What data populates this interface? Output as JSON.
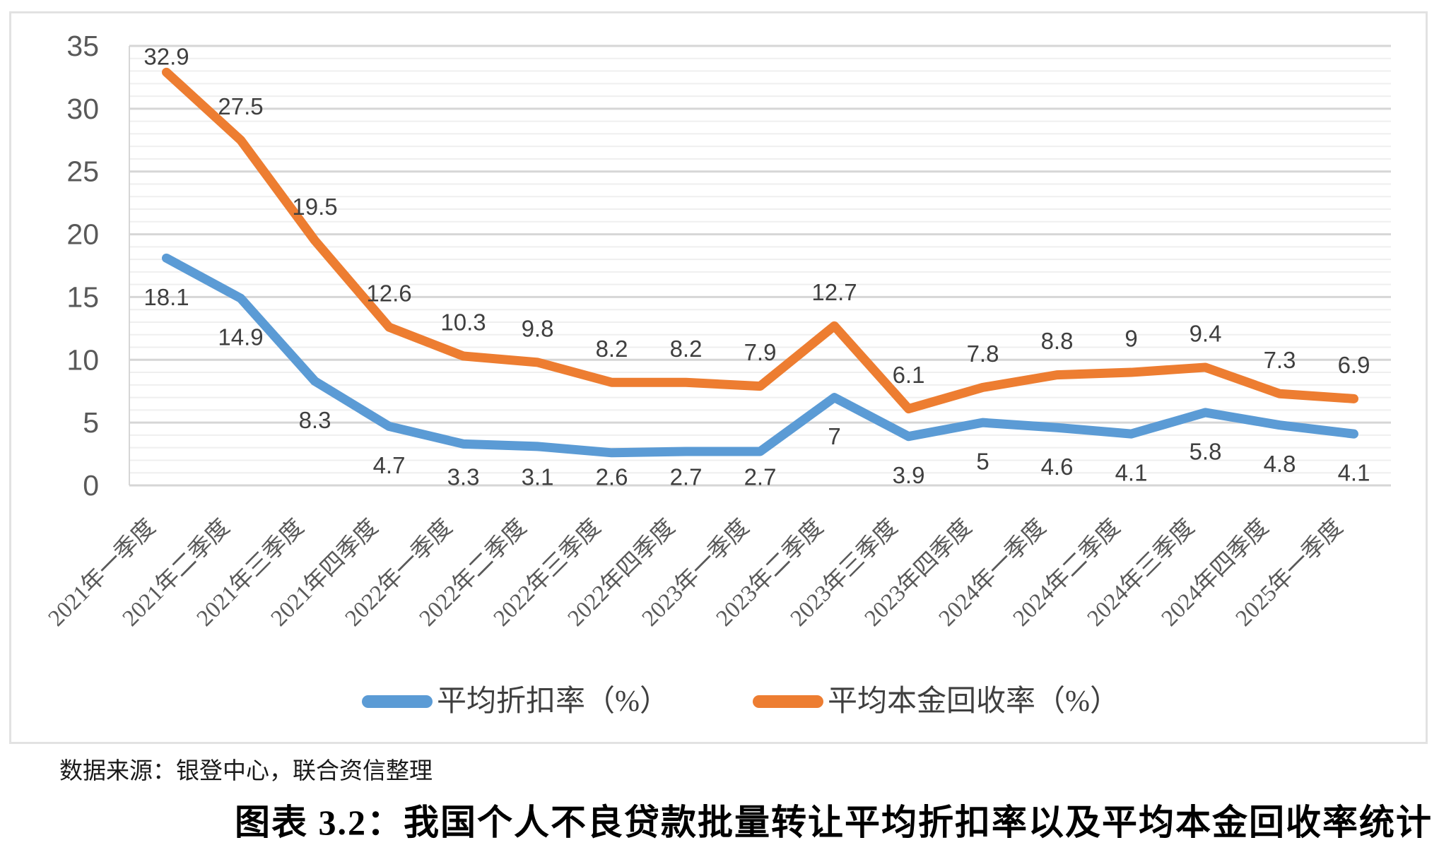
{
  "chart_data": {
    "type": "line",
    "categories": [
      "2021年一季度",
      "2021年二季度",
      "2021年三季度",
      "2021年四季度",
      "2022年一季度",
      "2022年二季度",
      "2022年三季度",
      "2022年四季度",
      "2023年一季度",
      "2023年二季度",
      "2023年三季度",
      "2023年四季度",
      "2024年一季度",
      "2024年二季度",
      "2024年三季度",
      "2024年四季度",
      "2025年一季度"
    ],
    "series": [
      {
        "name": "平均折扣率（%）",
        "color": "#5B9BD5",
        "values": [
          18.1,
          14.9,
          8.3,
          4.7,
          3.3,
          3.1,
          2.6,
          2.7,
          2.7,
          7,
          3.9,
          5,
          4.6,
          4.1,
          5.8,
          4.8,
          4.1
        ],
        "label_side": "below"
      },
      {
        "name": "平均本金回收率（%）",
        "color": "#ED7D31",
        "values": [
          32.9,
          27.5,
          19.5,
          12.6,
          10.3,
          9.8,
          8.2,
          8.2,
          7.9,
          12.7,
          6.1,
          7.8,
          8.8,
          9,
          9.4,
          7.3,
          6.9
        ],
        "label_side": "above"
      }
    ],
    "title": "",
    "xlabel": "",
    "ylabel": "",
    "ylim": [
      0,
      35
    ],
    "y_ticks": [
      0,
      5,
      10,
      15,
      20,
      25,
      30,
      35
    ],
    "minor_grid_step": 1,
    "grid": true,
    "legend_position": "bottom",
    "colors": {
      "major_grid": "#d6d6d6",
      "minor_grid": "#efefef",
      "axis_label": "#595959",
      "data_label": "#3f3f3f"
    }
  },
  "legend": {
    "items": [
      {
        "label": "平均折扣率（%）",
        "color": "#5B9BD5"
      },
      {
        "label": "平均本金回收率（%）",
        "color": "#ED7D31"
      }
    ]
  },
  "source_note": "数据来源：银登中心，联合资信整理",
  "caption": "图表 3.2：我国个人不良贷款批量转让平均折扣率以及平均本金回收率统计"
}
